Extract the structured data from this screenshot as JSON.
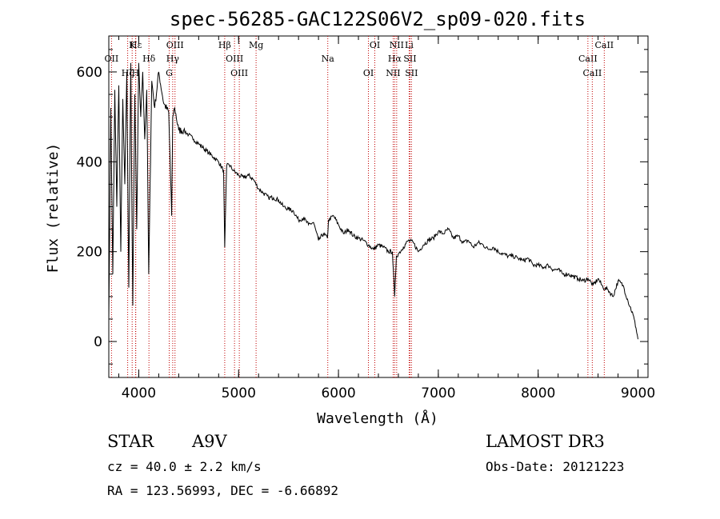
{
  "chart_data": {
    "type": "line",
    "title": "spec-56285-GAC122S06V2_sp09-020.fits",
    "xlabel": "Wavelength (Å)",
    "ylabel": "Flux (relative)",
    "xlim": [
      3700,
      9100
    ],
    "ylim": [
      -80,
      680
    ],
    "xticks": [
      4000,
      5000,
      6000,
      7000,
      8000,
      9000
    ],
    "yticks": [
      0,
      200,
      400,
      600
    ],
    "series": [
      {
        "name": "flux",
        "x": [
          3700,
          3720,
          3740,
          3760,
          3780,
          3800,
          3820,
          3840,
          3860,
          3880,
          3900,
          3920,
          3940,
          3960,
          3980,
          4000,
          4020,
          4040,
          4060,
          4080,
          4100,
          4130,
          4160,
          4200,
          4250,
          4300,
          4330,
          4340,
          4360,
          4400,
          4450,
          4500,
          4550,
          4600,
          4650,
          4700,
          4750,
          4800,
          4850,
          4861,
          4880,
          4900,
          4950,
          5000,
          5050,
          5100,
          5150,
          5200,
          5250,
          5300,
          5350,
          5400,
          5450,
          5500,
          5550,
          5600,
          5650,
          5700,
          5750,
          5800,
          5850,
          5890,
          5900,
          5950,
          6000,
          6050,
          6100,
          6150,
          6200,
          6250,
          6300,
          6350,
          6400,
          6450,
          6500,
          6540,
          6563,
          6580,
          6600,
          6650,
          6700,
          6750,
          6800,
          6850,
          6900,
          6950,
          7000,
          7050,
          7100,
          7150,
          7200,
          7250,
          7300,
          7350,
          7400,
          7450,
          7500,
          7550,
          7600,
          7650,
          7700,
          7750,
          7800,
          7850,
          7900,
          7950,
          8000,
          8050,
          8100,
          8150,
          8200,
          8250,
          8300,
          8350,
          8400,
          8450,
          8500,
          8550,
          8600,
          8650,
          8700,
          8750,
          8800,
          8850,
          8900,
          8950,
          8980,
          9000
        ],
        "y": [
          50,
          520,
          150,
          560,
          300,
          570,
          200,
          540,
          350,
          600,
          120,
          620,
          80,
          550,
          250,
          620,
          500,
          600,
          450,
          560,
          150,
          580,
          520,
          600,
          530,
          510,
          280,
          500,
          520,
          470,
          470,
          460,
          450,
          440,
          430,
          420,
          410,
          400,
          380,
          210,
          390,
          395,
          380,
          370,
          365,
          370,
          360,
          340,
          330,
          320,
          320,
          315,
          300,
          295,
          290,
          270,
          275,
          260,
          265,
          225,
          240,
          230,
          270,
          280,
          260,
          240,
          250,
          235,
          230,
          225,
          215,
          205,
          215,
          210,
          200,
          200,
          100,
          190,
          195,
          210,
          225,
          220,
          200,
          215,
          225,
          230,
          245,
          240,
          250,
          230,
          235,
          220,
          225,
          210,
          220,
          215,
          205,
          210,
          200,
          195,
          190,
          190,
          185,
          180,
          185,
          170,
          170,
          165,
          170,
          160,
          160,
          150,
          150,
          145,
          140,
          135,
          140,
          125,
          140,
          120,
          115,
          100,
          135,
          125,
          90,
          60,
          30,
          5
        ]
      }
    ],
    "lines": [
      {
        "label": "Hε",
        "x": 3970
      },
      {
        "label": "OII",
        "x": 3727
      },
      {
        "label": "Hζ",
        "x": 3889
      },
      {
        "label": "K",
        "x": 3934
      },
      {
        "label": "Hδ",
        "x": 4102
      },
      {
        "label": "H",
        "x": 3968
      },
      {
        "label": "OIII",
        "x": 4363
      },
      {
        "label": "Hγ",
        "x": 4340
      },
      {
        "label": "G",
        "x": 4305
      },
      {
        "label": "Hβ",
        "x": 4861
      },
      {
        "label": "OIII",
        "x": 4959
      },
      {
        "label": "OIII",
        "x": 5007
      },
      {
        "label": "Mg",
        "x": 5175
      },
      {
        "label": "Na",
        "x": 5893
      },
      {
        "label": "OI",
        "x": 6300
      },
      {
        "label": "OI",
        "x": 6364
      },
      {
        "label": "Hα",
        "x": 6563
      },
      {
        "label": "NII",
        "x": 6548
      },
      {
        "label": "NII",
        "x": 6583
      },
      {
        "label": "SII",
        "x": 6716
      },
      {
        "label": "SII",
        "x": 6731
      },
      {
        "label": "Li",
        "x": 6708
      },
      {
        "label": "CaII",
        "x": 8498
      },
      {
        "label": "CaII",
        "x": 8542
      },
      {
        "label": "CaII",
        "x": 8662
      }
    ]
  },
  "info": {
    "object_type": "STAR",
    "subclass": "A9V",
    "survey": "LAMOST DR3",
    "cz": "cz = 40.0 ± 2.2 km/s",
    "obs_date": "Obs-Date: 20121223",
    "coords": "RA = 123.56993, DEC =  -6.66892"
  }
}
